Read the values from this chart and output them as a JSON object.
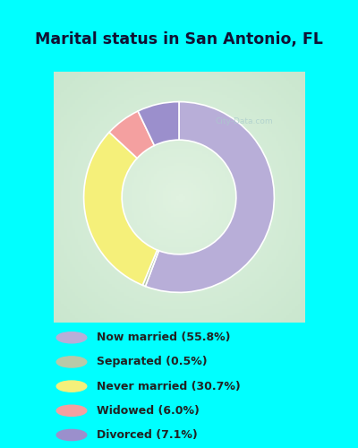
{
  "title": "Marital status in San Antonio, FL",
  "slices": [
    {
      "label": "Now married (55.8%)",
      "value": 55.8,
      "color": "#b8aed8"
    },
    {
      "label": "Separated (0.5%)",
      "value": 0.5,
      "color": "#b8c9a8"
    },
    {
      "label": "Never married (30.7%)",
      "value": 30.7,
      "color": "#f5f07a"
    },
    {
      "label": "Widowed (6.0%)",
      "value": 6.0,
      "color": "#f4a0a0"
    },
    {
      "label": "Divorced (7.1%)",
      "value": 7.1,
      "color": "#9b8fcc"
    }
  ],
  "bg_cyan": "#00ffff",
  "title_color": "#111133",
  "legend_text_color": "#222222",
  "watermark": "City-Data.com",
  "donut_width": 0.38,
  "chart_bg_center": "#d8ede0",
  "chart_bg_edge": "#c8e8d5",
  "startangle": 90
}
